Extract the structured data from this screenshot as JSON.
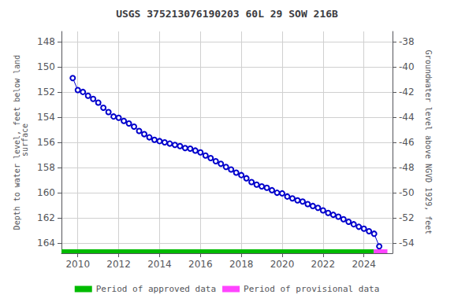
{
  "chart_data": {
    "type": "line",
    "title": "USGS 375213076190203 60L 29 SOW 216B",
    "ylabel": "Depth to water level, feet below land\n surface",
    "y2label": "Groundwater level above NGVD 1929, feet",
    "x": [
      2009.75,
      2010.0,
      2010.25,
      2010.5,
      2010.75,
      2011.0,
      2011.25,
      2011.5,
      2011.75,
      2012.0,
      2012.25,
      2012.5,
      2012.75,
      2013.0,
      2013.25,
      2013.5,
      2013.75,
      2014.0,
      2014.25,
      2014.5,
      2014.75,
      2015.0,
      2015.25,
      2015.5,
      2015.75,
      2016.0,
      2016.25,
      2016.5,
      2016.75,
      2017.0,
      2017.25,
      2017.5,
      2017.75,
      2018.0,
      2018.25,
      2018.5,
      2018.75,
      2019.0,
      2019.25,
      2019.5,
      2019.75,
      2020.0,
      2020.25,
      2020.5,
      2020.75,
      2021.0,
      2021.25,
      2021.5,
      2021.75,
      2022.0,
      2022.25,
      2022.5,
      2022.75,
      2023.0,
      2023.25,
      2023.5,
      2023.75,
      2024.0,
      2024.25,
      2024.5,
      2024.75
    ],
    "series": [
      {
        "color": "#0000cc",
        "marker": "circle",
        "line_style": "solid",
        "values": [
          150.9,
          151.85,
          152.0,
          152.3,
          152.55,
          152.85,
          153.25,
          153.6,
          153.95,
          154.05,
          154.3,
          154.5,
          154.75,
          155.1,
          155.35,
          155.6,
          155.8,
          155.9,
          156.0,
          156.1,
          156.2,
          156.3,
          156.45,
          156.5,
          156.65,
          156.8,
          157.05,
          157.25,
          157.5,
          157.7,
          157.95,
          158.15,
          158.4,
          158.6,
          158.85,
          159.15,
          159.35,
          159.5,
          159.6,
          159.8,
          160.0,
          160.05,
          160.3,
          160.45,
          160.6,
          160.7,
          160.9,
          161.05,
          161.2,
          161.4,
          161.6,
          161.75,
          161.9,
          162.1,
          162.3,
          162.5,
          162.7,
          162.85,
          163.05,
          163.25,
          164.25
        ]
      }
    ],
    "periods": [
      {
        "name": "Period of approved data",
        "color": "#00bb00",
        "x": [
          2009.2,
          2024.48
        ]
      },
      {
        "name": "Period of provisional data",
        "color": "#ff44ff",
        "x": [
          2024.48,
          2025.15
        ]
      }
    ],
    "xlim": [
      2009.2,
      2025.4
    ],
    "xticks": [
      2010,
      2012,
      2014,
      2016,
      2018,
      2020,
      2022,
      2024
    ],
    "ylim": [
      164.8,
      147.2
    ],
    "yticks": [
      148,
      150,
      152,
      154,
      156,
      158,
      160,
      162,
      164
    ],
    "y2lim": [
      -54.8,
      -37.2
    ],
    "y2ticks": [
      -38,
      -40,
      -42,
      -44,
      -46,
      -48,
      -50,
      -52,
      -54
    ],
    "grid": true,
    "legend": "bottom"
  }
}
